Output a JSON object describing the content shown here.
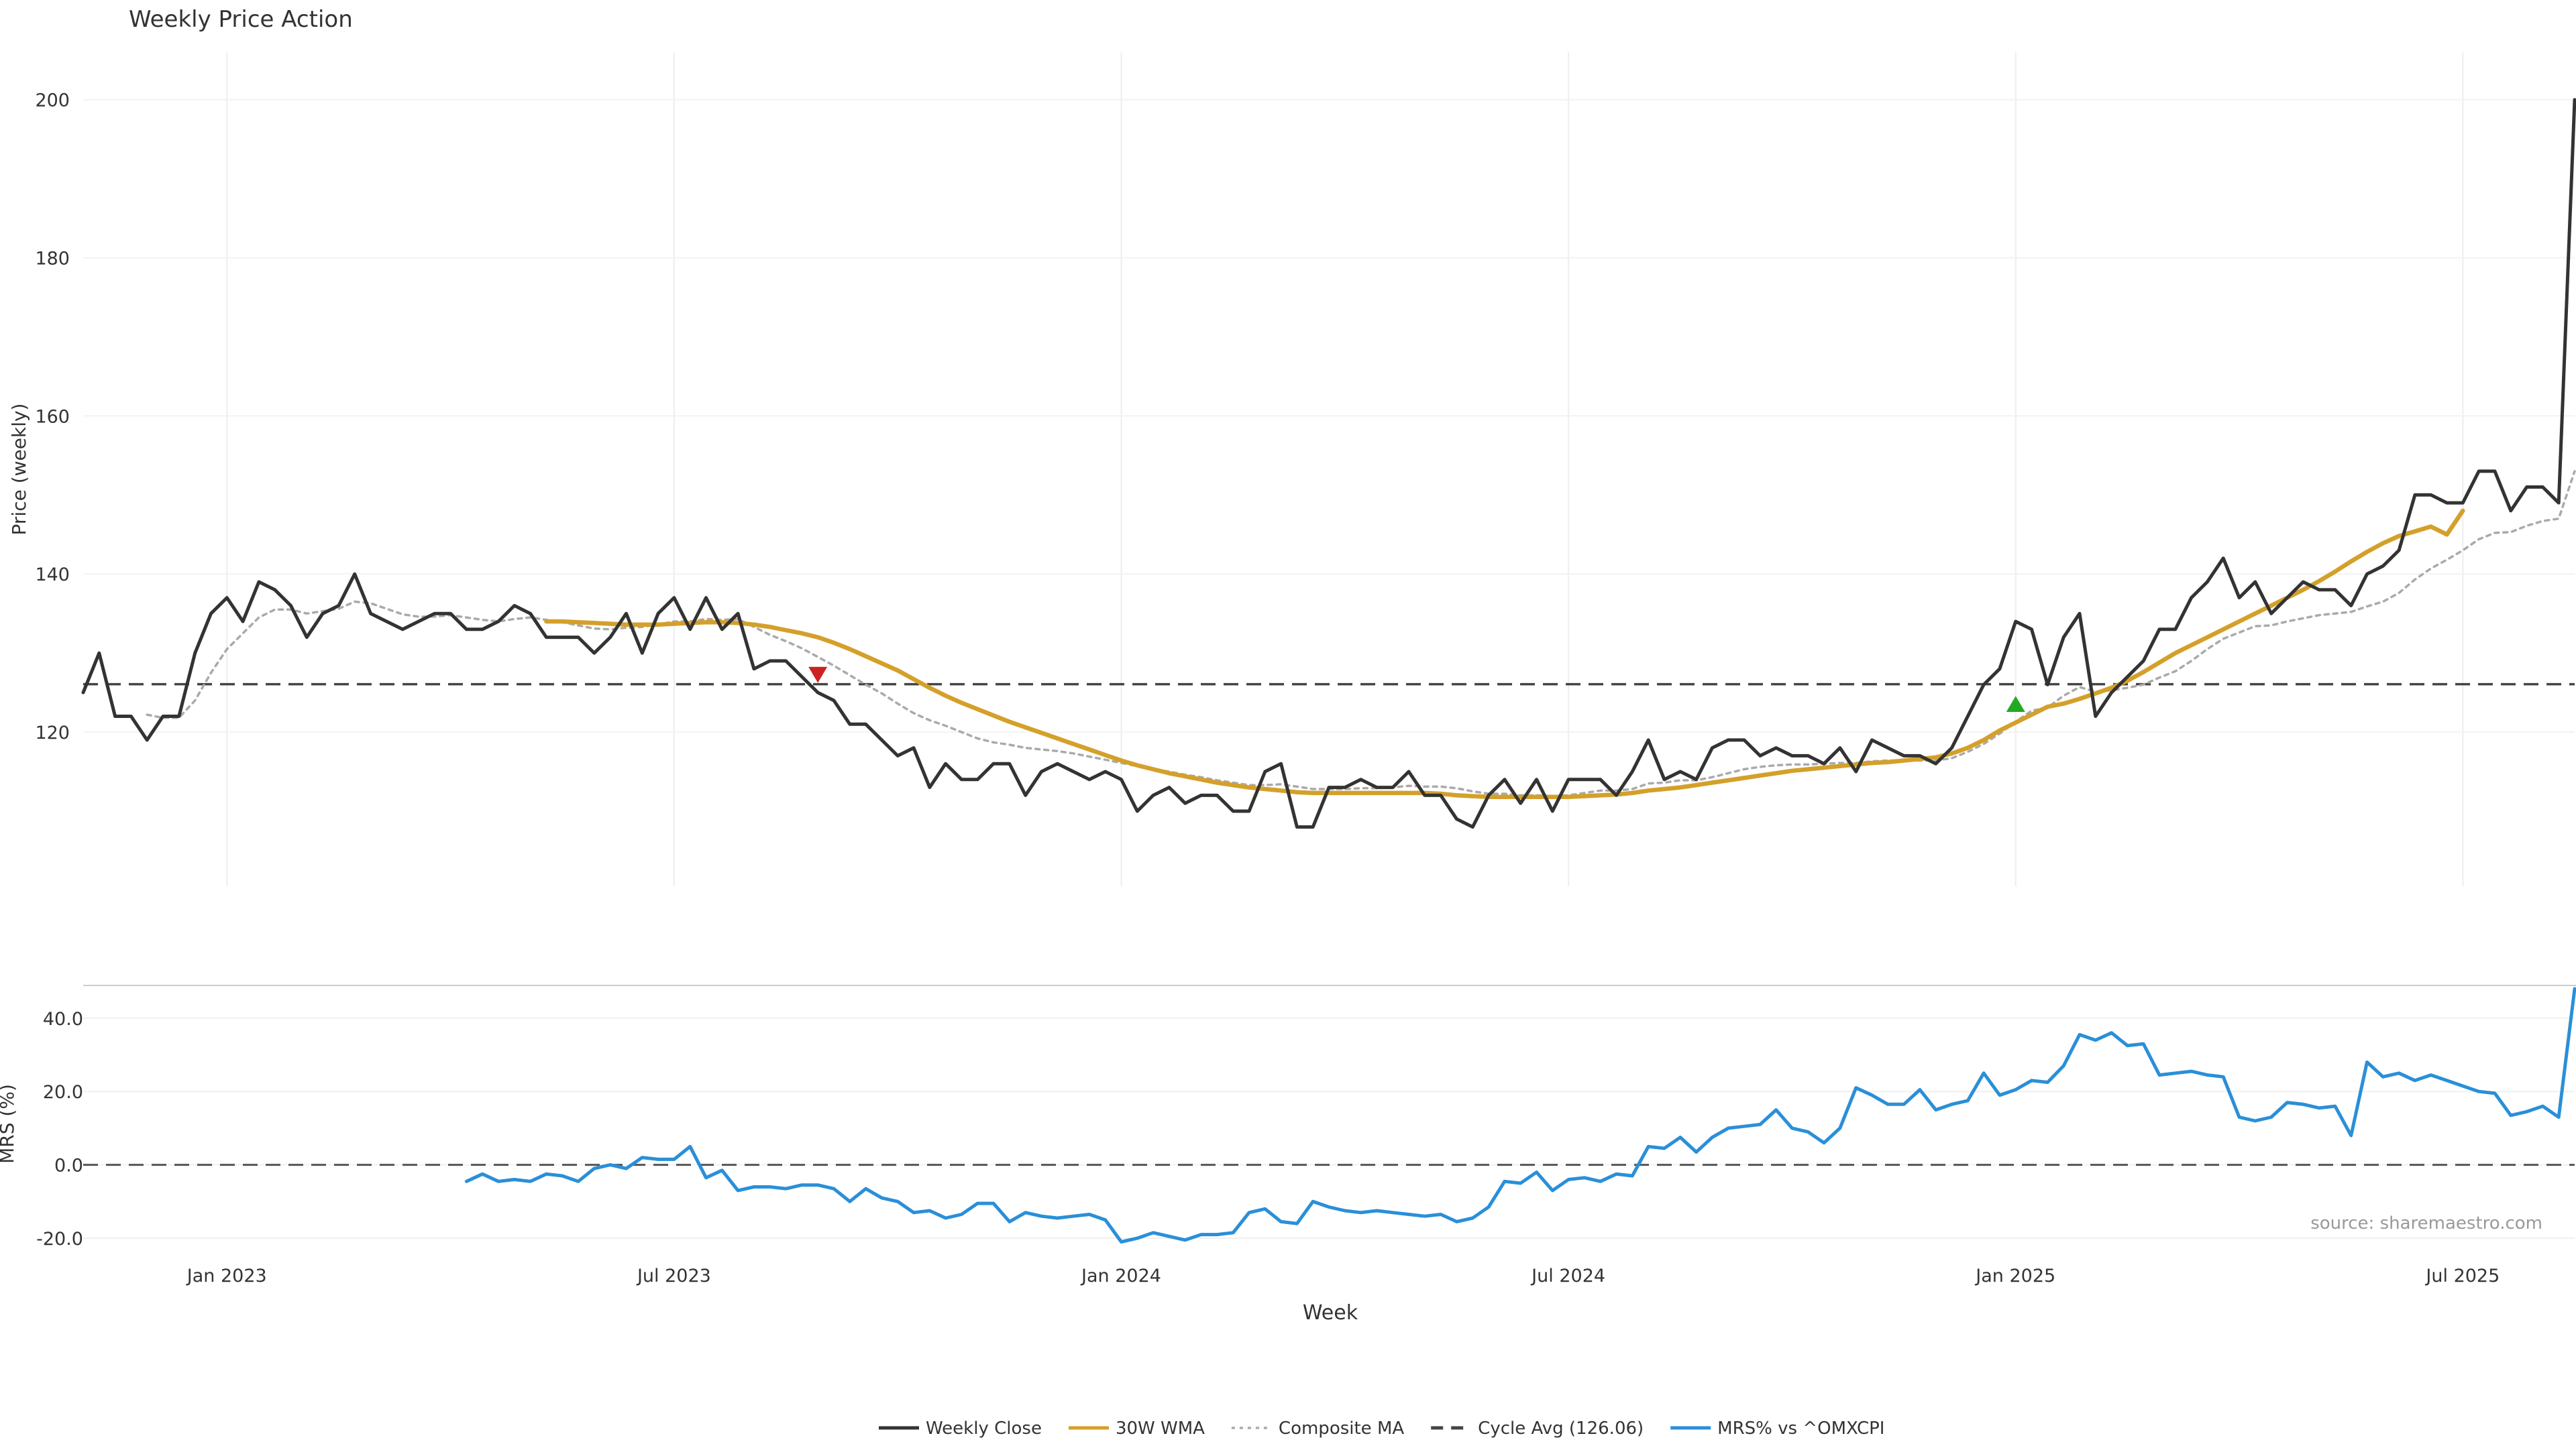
{
  "chart_data": [
    {
      "type": "line",
      "title": "Weekly Price Action",
      "ylabel": "Price (weekly)",
      "ylim": [
        100.5,
        206
      ],
      "yticks": [
        120,
        140,
        160,
        180,
        200
      ],
      "grid": true,
      "series": [
        {
          "name": "Weekly Close",
          "color": "#333333",
          "values": [
            125,
            130,
            122,
            122,
            119,
            122,
            122,
            130,
            135,
            137,
            134,
            139,
            138,
            136,
            132,
            135,
            136,
            140,
            135,
            134,
            133,
            134,
            135,
            135,
            133,
            133,
            134,
            136,
            135,
            132,
            132,
            132,
            130,
            132,
            135,
            130,
            135,
            137,
            133,
            137,
            133,
            135,
            128,
            129,
            129,
            127,
            125,
            124,
            121,
            121,
            119,
            117,
            118,
            113,
            116,
            114,
            114,
            116,
            116,
            112,
            115,
            116,
            115,
            114,
            115,
            114,
            110,
            112,
            113,
            111,
            112,
            112,
            110,
            110,
            115,
            116,
            108,
            108,
            113,
            113,
            114,
            113,
            113,
            115,
            112,
            112,
            109,
            108,
            112,
            114,
            111,
            114,
            110,
            114,
            114,
            114,
            112,
            115,
            119,
            114,
            115,
            114,
            118,
            119,
            119,
            117,
            118,
            117,
            117,
            116,
            118,
            115,
            119,
            118,
            117,
            117,
            116,
            118,
            122,
            126,
            128,
            134,
            133,
            126,
            132,
            135,
            122,
            125,
            127,
            129,
            133,
            133,
            137,
            139,
            142,
            137,
            139,
            135,
            137,
            139,
            138,
            138,
            136,
            140,
            141,
            143,
            150,
            150,
            149,
            149,
            153,
            153,
            148,
            151,
            151,
            149,
            200
          ]
        },
        {
          "name": "30W WMA",
          "color": "#d4a02a",
          "values": [
            null,
            null,
            null,
            null,
            null,
            null,
            null,
            null,
            null,
            null,
            null,
            null,
            null,
            null,
            null,
            null,
            null,
            null,
            null,
            null,
            null,
            null,
            null,
            null,
            null,
            null,
            null,
            null,
            null,
            134,
            134,
            133.9,
            133.8,
            133.7,
            133.6,
            133.6,
            133.6,
            133.7,
            133.8,
            133.9,
            133.9,
            133.8,
            133.6,
            133.3,
            132.9,
            132.5,
            132,
            131.3,
            130.5,
            129.6,
            128.7,
            127.8,
            126.7,
            125.6,
            124.6,
            123.7,
            122.9,
            122.1,
            121.3,
            120.6,
            119.9,
            119.2,
            118.5,
            117.8,
            117.1,
            116.4,
            115.8,
            115.3,
            114.8,
            114.4,
            114,
            113.6,
            113.3,
            113,
            112.8,
            112.6,
            112.4,
            112.3,
            112.3,
            112.3,
            112.3,
            112.3,
            112.3,
            112.3,
            112.3,
            112.2,
            112,
            111.9,
            111.8,
            111.8,
            111.8,
            111.8,
            111.8,
            111.8,
            111.9,
            112,
            112.1,
            112.3,
            112.6,
            112.8,
            113,
            113.3,
            113.6,
            113.9,
            114.2,
            114.5,
            114.8,
            115.1,
            115.3,
            115.5,
            115.7,
            115.9,
            116.1,
            116.2,
            116.4,
            116.6,
            116.8,
            117.3,
            118,
            119,
            120.2,
            121.2,
            122.2,
            123.2,
            123.6,
            124.2,
            124.9,
            125.6,
            126.5,
            127.6,
            128.8,
            130,
            131,
            132,
            133,
            134,
            135,
            136,
            137,
            138,
            139.1,
            140.3,
            141.6,
            142.8,
            143.9,
            144.8,
            145.4,
            146,
            145,
            148
          ]
        },
        {
          "name": "Composite MA",
          "color": "#aaaaaa",
          "values": [
            null,
            null,
            null,
            null,
            122.2,
            121.8,
            121.8,
            124,
            127.5,
            130.5,
            132.5,
            134.5,
            135.5,
            135.5,
            135,
            135.3,
            135.6,
            136.5,
            136.3,
            135.6,
            134.9,
            134.6,
            134.6,
            134.8,
            134.5,
            134.2,
            134,
            134.3,
            134.5,
            134.2,
            133.9,
            133.5,
            133.1,
            133,
            133.2,
            133.3,
            133.6,
            134,
            134,
            134.3,
            134.2,
            134.3,
            133.3,
            132.3,
            131.5,
            130.6,
            129.5,
            128.4,
            127.2,
            126,
            124.9,
            123.6,
            122.4,
            121.5,
            120.8,
            120,
            119.2,
            118.7,
            118.4,
            118,
            117.8,
            117.6,
            117.3,
            116.9,
            116.5,
            116.1,
            115.7,
            115.3,
            115,
            114.6,
            114.3,
            113.9,
            113.6,
            113.3,
            113.3,
            113.4,
            113.1,
            112.8,
            112.8,
            112.8,
            112.9,
            112.9,
            113,
            113.2,
            113.1,
            113.1,
            112.9,
            112.5,
            112.2,
            112.2,
            112,
            112,
            111.9,
            112,
            112.3,
            112.6,
            112.6,
            112.8,
            113.5,
            113.6,
            113.9,
            113.9,
            114.3,
            114.8,
            115.3,
            115.6,
            115.8,
            115.9,
            115.9,
            116,
            116.1,
            116.1,
            116.3,
            116.4,
            116.4,
            116.4,
            116.4,
            116.7,
            117.5,
            118.5,
            119.8,
            121.3,
            122.7,
            123.1,
            124.6,
            125.7,
            125.1,
            125.3,
            125.6,
            126,
            126.9,
            127.7,
            129,
            130.5,
            131.8,
            132.6,
            133.4,
            133.5,
            134,
            134.4,
            134.8,
            135,
            135.2,
            135.9,
            136.5,
            137.6,
            139.3,
            140.7,
            141.8,
            143,
            144.4,
            145.2,
            145.3,
            146.1,
            146.7,
            147,
            153
          ]
        }
      ],
      "reference_line": {
        "label": "Cycle Avg (126.06)",
        "value": 126.06,
        "color": "#444444"
      },
      "markers": [
        {
          "shape": "triangle-down",
          "week": 46,
          "value": 127.3,
          "color": "#cc2222"
        },
        {
          "shape": "triangle-up",
          "week": 121,
          "value": 123.5,
          "color": "#22aa22"
        }
      ]
    },
    {
      "type": "line",
      "ylabel": "MRS (%)",
      "xlabel": "Week",
      "ylim": [
        -22,
        48
      ],
      "yticks": [
        -20,
        0,
        20,
        40
      ],
      "ytick_labels": [
        "-20.0",
        "0.0",
        "20.0",
        "40.0"
      ],
      "x_tick_labels": [
        "Jan 2023",
        "Jul 2023",
        "Jan 2024",
        "Jul 2024",
        "Jan 2025",
        "Jul 2025"
      ],
      "reference_value": 0,
      "series": [
        {
          "name": "MRS% vs ^OMXCPI",
          "color": "#2a8fd8",
          "values": [
            null,
            null,
            null,
            null,
            null,
            null,
            null,
            null,
            null,
            null,
            null,
            null,
            null,
            null,
            null,
            null,
            null,
            null,
            null,
            null,
            null,
            null,
            null,
            null,
            -4.5,
            -2.5,
            -4.5,
            -4,
            -4.5,
            -2.5,
            -3,
            -4.5,
            -1,
            0,
            -1,
            2,
            1.5,
            1.5,
            5,
            -3.5,
            -1.5,
            -7,
            -6,
            -6,
            -6.5,
            -5.5,
            -5.5,
            -6.5,
            -10,
            -6.5,
            -9,
            -10,
            -13,
            -12.5,
            -14.5,
            -13.5,
            -10.5,
            -10.5,
            -15.5,
            -13,
            -14,
            -14.5,
            -14,
            -13.5,
            -15,
            -21,
            -20,
            -18.5,
            -19.5,
            -20.5,
            -19,
            -19,
            -18.5,
            -13,
            -12,
            -15.5,
            -16,
            -10,
            -11.5,
            -12.5,
            -13,
            -12.5,
            -13,
            -13.5,
            -14,
            -13.5,
            -15.5,
            -14.5,
            -11.5,
            -4.5,
            -5,
            -2,
            -7,
            -4,
            -3.5,
            -4.5,
            -2.5,
            -3,
            5,
            4.5,
            7.5,
            3.5,
            7.5,
            10,
            10.5,
            11,
            15,
            10,
            9,
            6,
            10,
            21,
            19,
            16.5,
            16.5,
            20.5,
            15,
            16.5,
            17.5,
            25,
            19,
            20.5,
            23,
            22.5,
            27,
            35.5,
            34,
            36,
            32.5,
            33,
            24.5,
            25,
            25.5,
            24.5,
            24,
            13,
            12,
            13,
            17,
            16.5,
            15.5,
            16,
            8,
            28,
            24,
            25,
            23,
            24.5,
            23,
            21.5,
            20,
            19.5,
            13.5,
            14.5,
            16,
            13,
            48
          ]
        }
      ],
      "annotation": "source: sharemaestro.com"
    }
  ],
  "legend": [
    {
      "label": "Weekly Close",
      "color": "#333333",
      "style": "solid"
    },
    {
      "label": "30W WMA",
      "color": "#d4a02a",
      "style": "solid"
    },
    {
      "label": "Composite MA",
      "color": "#aaaaaa",
      "style": "dotted"
    },
    {
      "label": "Cycle Avg (126.06)",
      "color": "#444444",
      "style": "dashed"
    },
    {
      "label": "MRS% vs ^OMXCPI",
      "color": "#2a8fd8",
      "style": "solid"
    }
  ]
}
